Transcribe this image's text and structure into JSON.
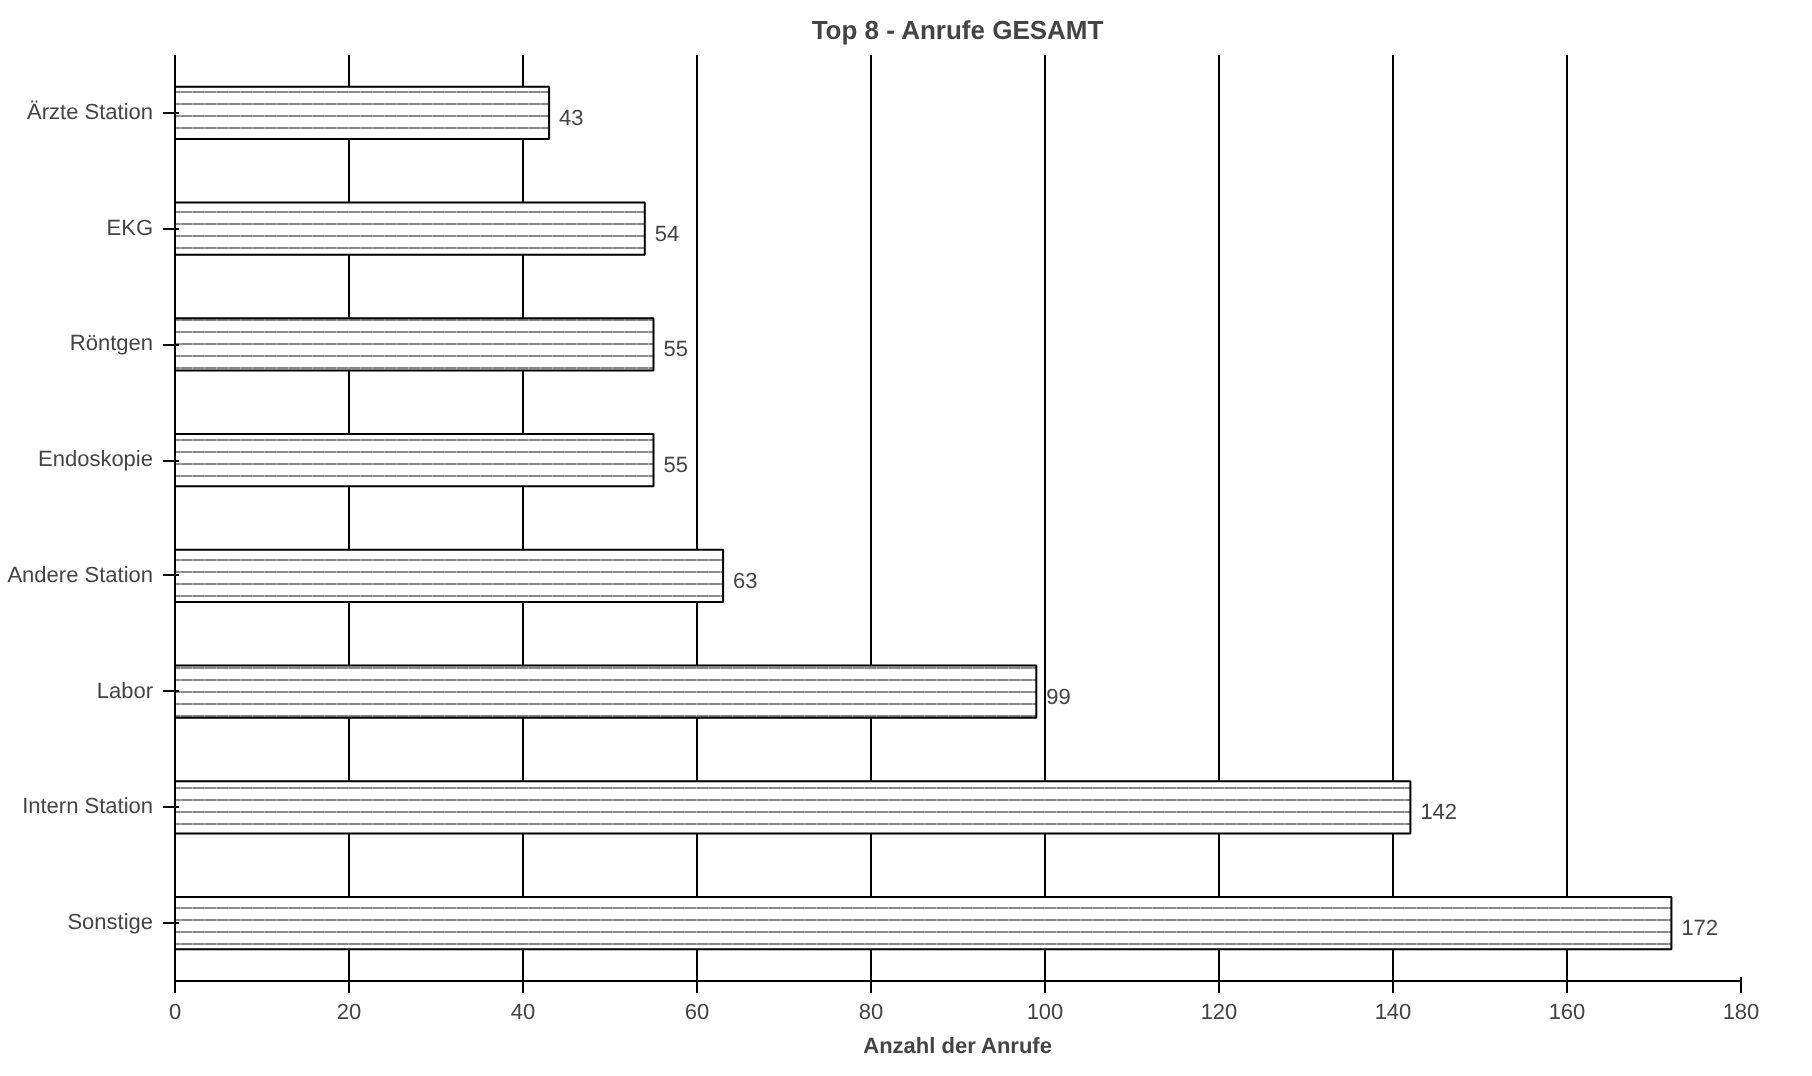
{
  "chart_data": {
    "type": "bar",
    "orientation": "horizontal",
    "title": "Top 8 - Anrufe GESAMT",
    "xlabel": "Anzahl der Anrufe",
    "categories": [
      "Ärzte Station",
      "EKG",
      "Röntgen",
      "Endoskopie",
      "Andere Station",
      "Labor",
      "Intern Station",
      "Sonstige"
    ],
    "values": [
      43,
      54,
      55,
      55,
      63,
      99,
      142,
      172
    ],
    "color": "#ffffff",
    "xlim": [
      0,
      180
    ],
    "xticks": [
      0,
      20,
      40,
      60,
      80,
      100,
      120,
      140,
      160,
      180
    ],
    "grid": "x",
    "data_labels": true
  }
}
